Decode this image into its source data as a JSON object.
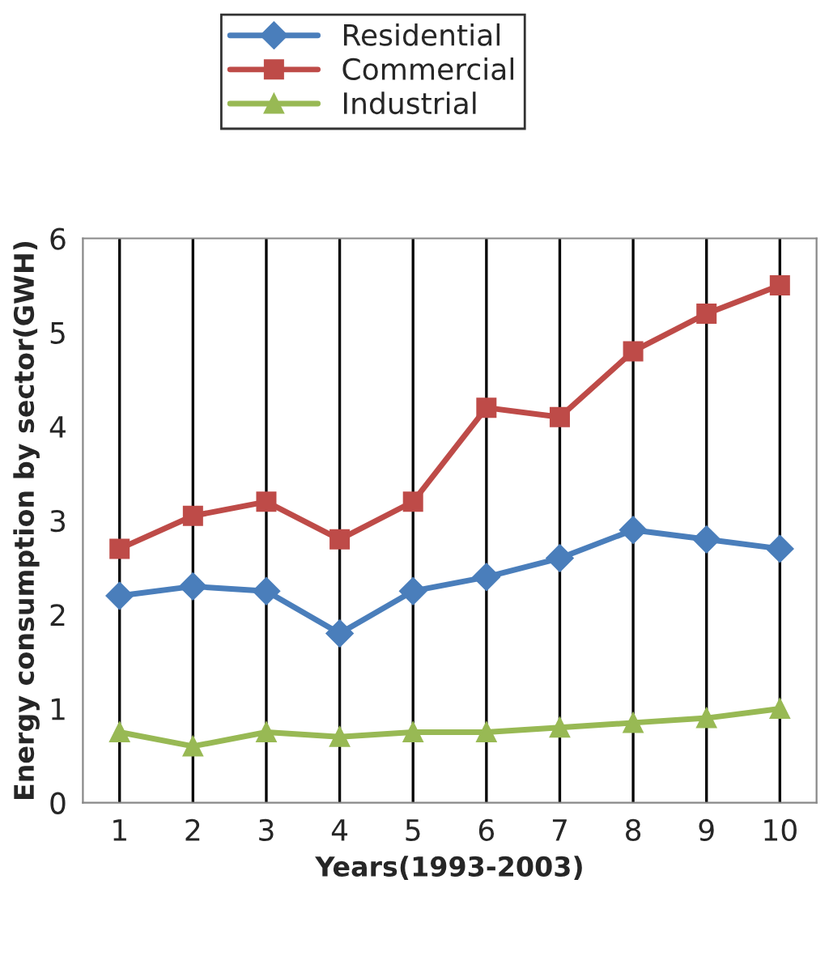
{
  "chart_data": {
    "type": "line",
    "xlabel": "Years(1993-2003)",
    "ylabel": "Energy consumption by sector(GWH)",
    "categories": [
      "1",
      "2",
      "3",
      "4",
      "5",
      "6",
      "7",
      "8",
      "9",
      "10"
    ],
    "series": [
      {
        "name": "Residential",
        "color": "#4a7ebb",
        "marker": "diamond",
        "values": [
          2.2,
          2.3,
          2.25,
          1.8,
          2.25,
          2.4,
          2.6,
          2.9,
          2.8,
          2.7
        ]
      },
      {
        "name": "Commercial",
        "color": "#be4b48",
        "marker": "square",
        "values": [
          2.7,
          3.05,
          3.2,
          2.8,
          3.2,
          4.2,
          4.1,
          4.8,
          5.2,
          5.5
        ]
      },
      {
        "name": "Industrial",
        "color": "#98b954",
        "marker": "triangle",
        "values": [
          0.75,
          0.6,
          0.75,
          0.7,
          0.75,
          0.75,
          0.8,
          0.85,
          0.9,
          1.0
        ]
      }
    ],
    "ylim": [
      0,
      6
    ],
    "yticks": [
      0,
      1,
      2,
      3,
      4,
      5,
      6
    ],
    "grid": "x",
    "legend": "top"
  }
}
